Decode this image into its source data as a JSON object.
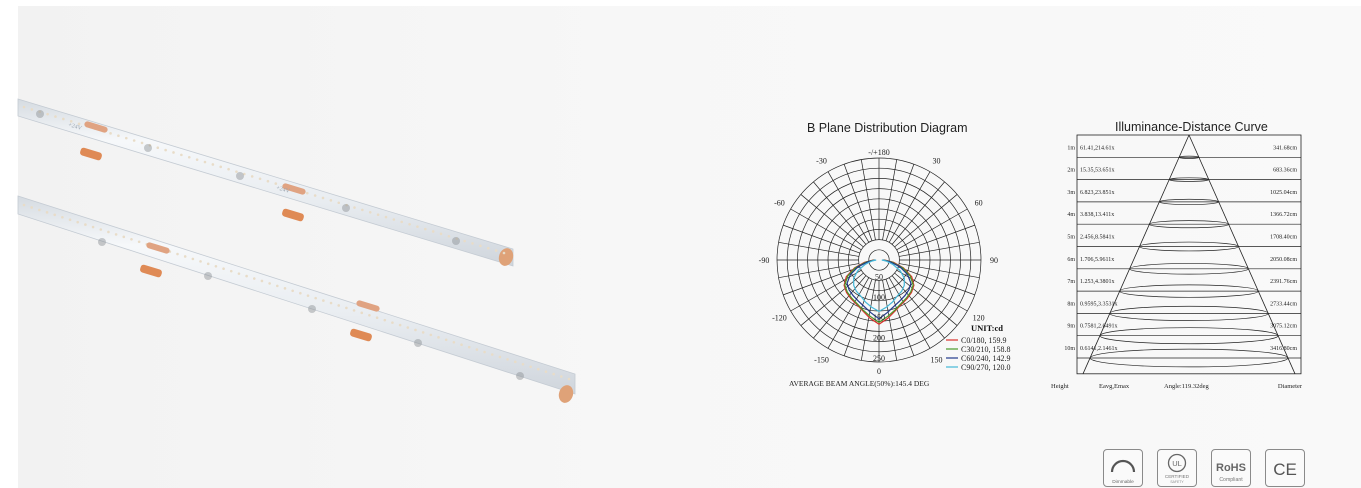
{
  "polar": {
    "title": "B Plane Distribution Diagram",
    "angle_labels": [
      "-/+180",
      "-150",
      "150",
      "-120",
      "120",
      "-90",
      "90",
      "-60",
      "60",
      "-30",
      "30",
      "0"
    ],
    "radial_labels": [
      "50",
      "100",
      "150",
      "200",
      "250"
    ],
    "unit": "UNIT:cd",
    "legend": [
      {
        "label": "C0/180, 159.9",
        "color": "#d9302c"
      },
      {
        "label": "C30/210, 158.8",
        "color": "#4a9a2a"
      },
      {
        "label": "C60/240, 142.9",
        "color": "#223a8c"
      },
      {
        "label": "C90/270, 120.0",
        "color": "#45b8d8"
      }
    ],
    "footer": "AVERAGE BEAM ANGLE(50%):145.4 DEG"
  },
  "illuminance": {
    "title": "Illuminance-Distance Curve",
    "rows": [
      {
        "height": "1m",
        "values": "61.41,214.61x",
        "diameter": "341.68cm"
      },
      {
        "height": "2m",
        "values": "15.35,53.651x",
        "diameter": "683.36cm"
      },
      {
        "height": "3m",
        "values": "6.823,23.851x",
        "diameter": "1025.04cm"
      },
      {
        "height": "4m",
        "values": "3.838,13.411x",
        "diameter": "1366.72cm"
      },
      {
        "height": "5m",
        "values": "2.456,8.5841x",
        "diameter": "1708.40cm"
      },
      {
        "height": "6m",
        "values": "1.706,5.9611x",
        "diameter": "2050.08cm"
      },
      {
        "height": "7m",
        "values": "1.253,4.3801x",
        "diameter": "2391.76cm"
      },
      {
        "height": "8m",
        "values": "0.9595,3.3531x",
        "diameter": "2733.44cm"
      },
      {
        "height": "9m",
        "values": "0.7581,2.6491x",
        "diameter": "3075.12cm"
      },
      {
        "height": "10m",
        "values": "0.6141,2.1461x",
        "diameter": "3416.80cm"
      }
    ],
    "footer": {
      "height": "Height",
      "values": "Eavg,Emax",
      "angle": "Angle:119.32deg",
      "diameter": "Diameter"
    }
  },
  "strip_labels": [
    "+24V",
    "+24V"
  ],
  "badges": [
    {
      "icon": "dimmable-icon",
      "label": "Dimmable"
    },
    {
      "icon": "ul-certified-icon",
      "mark": "UL",
      "label": "CERTIFIED",
      "sub": "SAFETY"
    },
    {
      "icon": "rohs-icon",
      "mark": "RoHS",
      "label": "Compliant"
    },
    {
      "icon": "ce-mark-icon",
      "mark": "CE"
    }
  ]
}
